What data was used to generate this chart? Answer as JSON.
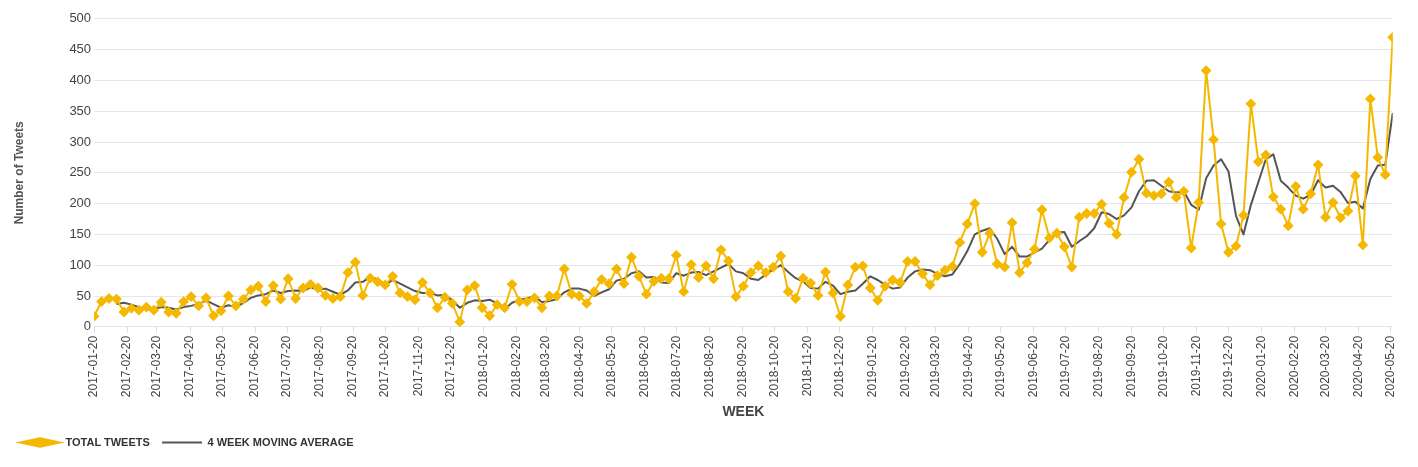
{
  "chart_data": {
    "type": "line",
    "xlabel": "WEEK",
    "ylabel": "Number of Tweets",
    "x": [
      "2017-01-20",
      "2017-01-27",
      "2017-02-03",
      "2017-02-10",
      "2017-02-17",
      "2017-02-24",
      "2017-03-03",
      "2017-03-10",
      "2017-03-17",
      "2017-03-24",
      "2017-03-31",
      "2017-04-07",
      "2017-04-14",
      "2017-04-21",
      "2017-04-28",
      "2017-05-05",
      "2017-05-12",
      "2017-05-19",
      "2017-05-26",
      "2017-06-02",
      "2017-06-09",
      "2017-06-16",
      "2017-06-23",
      "2017-06-30",
      "2017-07-07",
      "2017-07-14",
      "2017-07-21",
      "2017-07-28",
      "2017-08-04",
      "2017-08-11",
      "2017-08-18",
      "2017-08-25",
      "2017-09-01",
      "2017-09-08",
      "2017-09-15",
      "2017-09-22",
      "2017-09-29",
      "2017-10-06",
      "2017-10-13",
      "2017-10-20",
      "2017-10-27",
      "2017-11-03",
      "2017-11-10",
      "2017-11-17",
      "2017-11-24",
      "2017-12-01",
      "2017-12-08",
      "2017-12-15",
      "2017-12-22",
      "2017-12-29",
      "2018-01-05",
      "2018-01-12",
      "2018-01-19",
      "2018-01-26",
      "2018-02-02",
      "2018-02-09",
      "2018-02-16",
      "2018-02-23",
      "2018-03-02",
      "2018-03-09",
      "2018-03-16",
      "2018-03-23",
      "2018-03-30",
      "2018-04-06",
      "2018-04-13",
      "2018-04-20",
      "2018-04-27",
      "2018-05-04",
      "2018-05-11",
      "2018-05-18",
      "2018-05-25",
      "2018-06-01",
      "2018-06-08",
      "2018-06-15",
      "2018-06-22",
      "2018-06-29",
      "2018-07-06",
      "2018-07-13",
      "2018-07-20",
      "2018-07-27",
      "2018-08-03",
      "2018-08-10",
      "2018-08-17",
      "2018-08-24",
      "2018-08-31",
      "2018-09-07",
      "2018-09-14",
      "2018-09-21",
      "2018-09-28",
      "2018-10-05",
      "2018-10-12",
      "2018-10-19",
      "2018-10-26",
      "2018-11-02",
      "2018-11-09",
      "2018-11-16",
      "2018-11-23",
      "2018-11-30",
      "2018-12-07",
      "2018-12-14",
      "2018-12-21",
      "2018-12-28",
      "2019-01-04",
      "2019-01-11",
      "2019-01-18",
      "2019-01-25",
      "2019-02-01",
      "2019-02-08",
      "2019-02-15",
      "2019-02-22",
      "2019-03-01",
      "2019-03-08",
      "2019-03-15",
      "2019-03-22",
      "2019-03-29",
      "2019-04-05",
      "2019-04-12",
      "2019-04-19",
      "2019-04-26",
      "2019-05-03",
      "2019-05-10",
      "2019-05-17",
      "2019-05-24",
      "2019-05-31",
      "2019-06-07",
      "2019-06-14",
      "2019-06-21",
      "2019-06-28",
      "2019-07-05",
      "2019-07-12",
      "2019-07-19",
      "2019-07-26",
      "2019-08-02",
      "2019-08-09",
      "2019-08-16",
      "2019-08-23",
      "2019-08-30",
      "2019-09-06",
      "2019-09-13",
      "2019-09-20",
      "2019-09-27",
      "2019-10-04",
      "2019-10-11",
      "2019-10-18",
      "2019-10-25",
      "2019-11-01",
      "2019-11-08",
      "2019-11-15",
      "2019-11-22",
      "2019-11-29",
      "2019-12-06",
      "2019-12-13",
      "2019-12-20",
      "2019-12-27",
      "2020-01-03",
      "2020-01-10",
      "2020-01-17",
      "2020-01-24",
      "2020-01-31",
      "2020-02-07",
      "2020-02-14",
      "2020-02-21",
      "2020-02-28",
      "2020-03-06",
      "2020-03-13",
      "2020-03-20",
      "2020-03-27",
      "2020-04-03",
      "2020-04-10",
      "2020-04-17",
      "2020-04-24",
      "2020-05-01",
      "2020-05-08",
      "2020-05-15",
      "2020-05-22"
    ],
    "series": [
      {
        "name": "TOTAL TWEETS",
        "color": "#f5b800",
        "marker": "diamond",
        "values": [
          17,
          41,
          46,
          45,
          24,
          30,
          27,
          32,
          27,
          40,
          24,
          22,
          41,
          49,
          34,
          47,
          18,
          26,
          50,
          34,
          45,
          60,
          66,
          41,
          67,
          45,
          78,
          46,
          63,
          69,
          63,
          51,
          46,
          49,
          88,
          105,
          51,
          79,
          73,
          68,
          82,
          55,
          49,
          44,
          72,
          55,
          31,
          48,
          38,
          8,
          60,
          67,
          31,
          18,
          36,
          31,
          69,
          41,
          41,
          47,
          31,
          50,
          50,
          94,
          53,
          50,
          38,
          57,
          77,
          70,
          94,
          70,
          113,
          82,
          53,
          74,
          79,
          78,
          116,
          57,
          101,
          80,
          99,
          78,
          125,
          107,
          49,
          66,
          88,
          99,
          88,
          97,
          115,
          57,
          46,
          79,
          71,
          51,
          89,
          55,
          17,
          68,
          97,
          99,
          63,
          43,
          66,
          76,
          72,
          106,
          106,
          86,
          68,
          83,
          92,
          98,
          137,
          167,
          200,
          121,
          152,
          102,
          97,
          169,
          88,
          104,
          126,
          190,
          144,
          152,
          130,
          97,
          178,
          184,
          184,
          199,
          168,
          150,
          210,
          251,
          272,
          217,
          213,
          216,
          235,
          210,
          220,
          128,
          202,
          416,
          304,
          167,
          121,
          131,
          181,
          362,
          268,
          279,
          211,
          191,
          164,
          228,
          191,
          216,
          263,
          178,
          202,
          177,
          188,
          245,
          133,
          370,
          275,
          247,
          470
        ]
      },
      {
        "name": "4 WEEK MOVING AVERAGE",
        "color": "#555555",
        "marker": "none",
        "values": [
          null,
          null,
          null,
          37,
          39,
          36,
          32,
          28,
          29,
          32,
          31,
          28,
          32,
          34,
          37,
          43,
          37,
          31,
          35,
          32,
          39,
          47,
          51,
          53,
          59,
          55,
          58,
          59,
          58,
          64,
          60,
          62,
          57,
          52,
          59,
          72,
          73,
          81,
          77,
          68,
          76,
          70,
          64,
          58,
          55,
          55,
          51,
          52,
          43,
          31,
          39,
          43,
          42,
          44,
          38,
          29,
          39,
          44,
          46,
          50,
          40,
          42,
          45,
          56,
          62,
          62,
          59,
          50,
          56,
          61,
          75,
          78,
          87,
          90,
          80,
          81,
          72,
          71,
          87,
          83,
          88,
          89,
          84,
          90,
          96,
          102,
          90,
          87,
          78,
          76,
          85,
          93,
          100,
          89,
          79,
          74,
          63,
          62,
          73,
          67,
          53,
          57,
          59,
          70,
          82,
          76,
          68,
          62,
          64,
          80,
          90,
          93,
          92,
          86,
          82,
          85,
          102,
          123,
          150,
          156,
          160,
          143,
          118,
          130,
          114,
          114,
          121,
          127,
          141,
          153,
          154,
          130,
          139,
          147,
          160,
          186,
          183,
          175,
          181,
          194,
          220,
          237,
          238,
          229,
          220,
          218,
          220,
          198,
          190,
          241,
          262,
          272,
          252,
          180,
          150,
          198,
          235,
          272,
          280,
          237,
          226,
          213,
          208,
          214,
          238,
          226,
          229,
          219,
          201,
          203,
          192,
          240,
          262,
          263,
          347
        ]
      }
    ],
    "xlim": [
      "2017-01-20",
      "2020-05-22"
    ],
    "xticks": [
      "2017-01-20",
      "2017-02-20",
      "2017-03-20",
      "2017-04-20",
      "2017-05-20",
      "2017-06-20",
      "2017-07-20",
      "2017-08-20",
      "2017-09-20",
      "2017-10-20",
      "2017-11-20",
      "2017-12-20",
      "2018-01-20",
      "2018-02-20",
      "2018-03-20",
      "2018-04-20",
      "2018-05-20",
      "2018-06-20",
      "2018-07-20",
      "2018-08-20",
      "2018-09-20",
      "2018-10-20",
      "2018-11-20",
      "2018-12-20",
      "2019-01-20",
      "2019-02-20",
      "2019-03-20",
      "2019-04-20",
      "2019-05-20",
      "2019-06-20",
      "2019-07-20",
      "2019-08-20",
      "2019-09-20",
      "2019-10-20",
      "2019-11-20",
      "2019-12-20",
      "2020-01-20",
      "2020-02-20",
      "2020-03-20",
      "2020-04-20",
      "2020-05-20"
    ],
    "ylim": [
      0,
      500
    ],
    "yticks": [
      0,
      50,
      100,
      150,
      200,
      250,
      300,
      350,
      400,
      450,
      500
    ],
    "grid": "y",
    "legend": "bottom left"
  }
}
